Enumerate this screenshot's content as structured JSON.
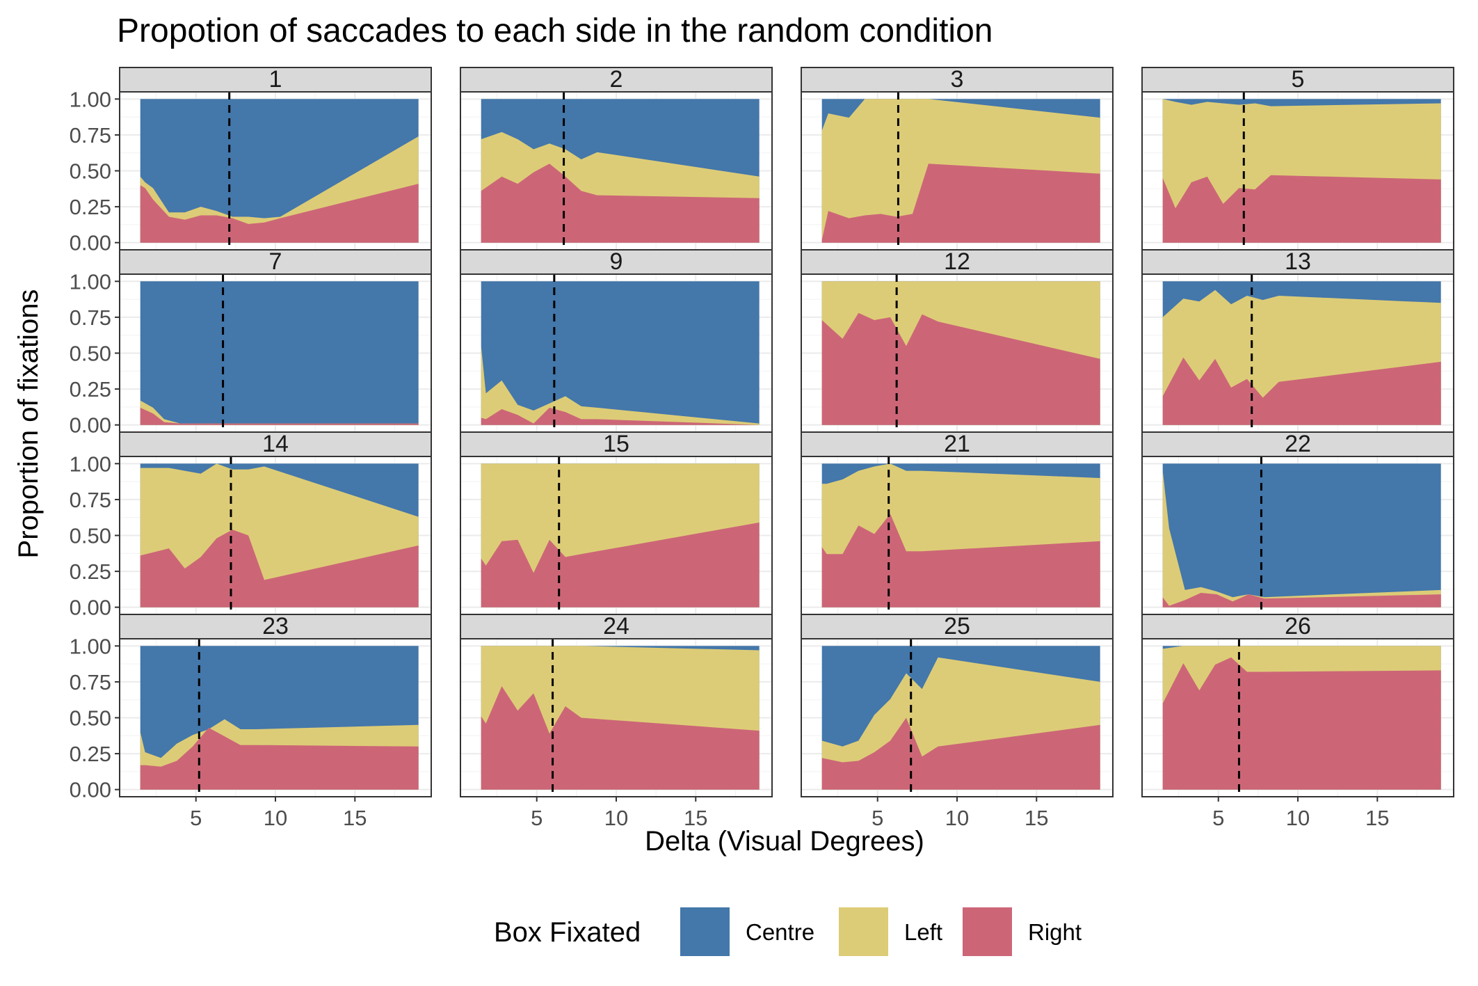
{
  "chart_data": {
    "type": "area",
    "stacked": true,
    "title": "Propotion of saccades to each side in the random condition",
    "xlabel": "Delta (Visual Degrees)",
    "ylabel": "Proportion of fixations",
    "xlim": [
      0.2,
      19.8
    ],
    "ylim": [
      -0.05,
      1.05
    ],
    "xticks": [
      5,
      10,
      15
    ],
    "xtick_labels": [
      "5",
      "10",
      "15"
    ],
    "yticks": [
      0,
      0.25,
      0.5,
      0.75,
      1
    ],
    "ytick_labels": [
      "0.00",
      "0.25",
      "0.50",
      "0.75",
      "1.00"
    ],
    "grid": true,
    "legend": {
      "title": "Box Fixated",
      "position": "bottom",
      "entries": [
        {
          "name": "Centre",
          "color": "#4477AA"
        },
        {
          "name": "Left",
          "color": "#DDCC77"
        },
        {
          "name": "Right",
          "color": "#CC6677"
        }
      ]
    },
    "panels": [
      {
        "label": "1",
        "threshold": 7.1,
        "x": [
          1.5,
          1.8,
          2.3,
          3.3,
          4.3,
          5.3,
          6.3,
          7.3,
          8.3,
          9.3,
          10.3,
          19
        ],
        "right": [
          0.4,
          0.38,
          0.3,
          0.18,
          0.16,
          0.19,
          0.19,
          0.17,
          0.13,
          0.14,
          0.17,
          0.41
        ],
        "left_top": [
          0.46,
          0.42,
          0.38,
          0.21,
          0.21,
          0.25,
          0.22,
          0.18,
          0.18,
          0.17,
          0.18,
          0.74
        ]
      },
      {
        "label": "2",
        "threshold": 6.7,
        "x": [
          1.5,
          2.8,
          3.8,
          4.8,
          5.8,
          6.8,
          7.8,
          8.8,
          19
        ],
        "right": [
          0.36,
          0.46,
          0.41,
          0.49,
          0.55,
          0.46,
          0.36,
          0.33,
          0.31
        ],
        "left_top": [
          0.72,
          0.77,
          0.72,
          0.65,
          0.69,
          0.65,
          0.58,
          0.63,
          0.46
        ]
      },
      {
        "label": "3",
        "threshold": 6.3,
        "x": [
          1.5,
          1.9,
          3.2,
          4.2,
          5.2,
          6.2,
          7.2,
          8.2,
          19
        ],
        "right": [
          0.02,
          0.22,
          0.17,
          0.19,
          0.2,
          0.18,
          0.2,
          0.55,
          0.48
        ],
        "left_top": [
          0.78,
          0.9,
          0.87,
          1.0,
          1.0,
          1.0,
          1.0,
          1.0,
          0.87
        ]
      },
      {
        "label": "5",
        "threshold": 6.6,
        "x": [
          1.5,
          2.3,
          3.3,
          4.3,
          5.3,
          6.3,
          7.3,
          8.3,
          19
        ],
        "right": [
          0.45,
          0.24,
          0.42,
          0.46,
          0.27,
          0.38,
          0.37,
          0.47,
          0.44
        ],
        "left_top": [
          1.0,
          0.98,
          0.96,
          0.98,
          0.97,
          0.96,
          0.97,
          0.95,
          0.97
        ]
      },
      {
        "label": "7",
        "threshold": 6.7,
        "x": [
          1.5,
          2.3,
          3.0,
          4.0,
          19
        ],
        "right": [
          0.12,
          0.08,
          0.02,
          0.01,
          0.01
        ],
        "left_top": [
          0.17,
          0.12,
          0.04,
          0.01,
          0.01
        ]
      },
      {
        "label": "9",
        "threshold": 6.1,
        "x": [
          1.5,
          1.8,
          2.8,
          3.8,
          4.8,
          5.8,
          6.8,
          7.8,
          8.8,
          19
        ],
        "right": [
          0.05,
          0.04,
          0.11,
          0.07,
          0.01,
          0.12,
          0.09,
          0.04,
          0.04,
          0.0
        ],
        "left_top": [
          0.55,
          0.22,
          0.31,
          0.14,
          0.1,
          0.15,
          0.2,
          0.13,
          0.12,
          0.01
        ]
      },
      {
        "label": "12",
        "threshold": 6.2,
        "x": [
          1.5,
          2.8,
          3.8,
          4.8,
          5.8,
          6.8,
          7.8,
          8.8,
          19
        ],
        "right": [
          0.73,
          0.6,
          0.78,
          0.73,
          0.75,
          0.55,
          0.77,
          0.72,
          0.46
        ],
        "left_top": [
          1.0,
          1.0,
          1.0,
          1.0,
          1.0,
          1.0,
          1.0,
          1.0,
          1.0
        ]
      },
      {
        "label": "13",
        "threshold": 7.1,
        "x": [
          1.5,
          2.8,
          3.8,
          4.8,
          5.8,
          6.8,
          7.8,
          8.8,
          19
        ],
        "right": [
          0.2,
          0.47,
          0.31,
          0.46,
          0.26,
          0.32,
          0.19,
          0.3,
          0.44
        ],
        "left_top": [
          0.75,
          0.88,
          0.86,
          0.94,
          0.84,
          0.9,
          0.87,
          0.9,
          0.85
        ]
      },
      {
        "label": "14",
        "threshold": 7.2,
        "x": [
          1.5,
          3.3,
          4.3,
          5.3,
          6.3,
          7.3,
          8.3,
          9.3,
          19
        ],
        "right": [
          0.36,
          0.41,
          0.27,
          0.35,
          0.48,
          0.54,
          0.5,
          0.19,
          0.43
        ],
        "left_top": [
          0.97,
          0.97,
          0.95,
          0.93,
          1.0,
          0.96,
          0.96,
          0.98,
          0.63
        ]
      },
      {
        "label": "15",
        "threshold": 6.4,
        "x": [
          1.5,
          1.8,
          2.8,
          3.8,
          4.8,
          5.8,
          6.8,
          7.8,
          19
        ],
        "right": [
          0.34,
          0.29,
          0.46,
          0.47,
          0.24,
          0.47,
          0.35,
          0.37,
          0.59
        ],
        "left_top": [
          1.0,
          1.0,
          1.0,
          1.0,
          1.0,
          1.0,
          1.0,
          1.0,
          1.0
        ]
      },
      {
        "label": "21",
        "threshold": 5.7,
        "x": [
          1.5,
          1.8,
          2.8,
          3.8,
          4.8,
          5.8,
          6.8,
          7.8,
          19
        ],
        "right": [
          0.42,
          0.37,
          0.37,
          0.57,
          0.51,
          0.65,
          0.39,
          0.39,
          0.46
        ],
        "left_top": [
          0.86,
          0.86,
          0.89,
          0.95,
          0.98,
          1.0,
          0.95,
          0.95,
          0.9
        ]
      },
      {
        "label": "22",
        "threshold": 7.7,
        "x": [
          1.5,
          1.9,
          2.9,
          3.9,
          4.9,
          5.9,
          6.9,
          7.9,
          19
        ],
        "right": [
          0.07,
          0.01,
          0.05,
          0.1,
          0.09,
          0.04,
          0.09,
          0.06,
          0.09
        ],
        "left_top": [
          0.95,
          0.55,
          0.12,
          0.14,
          0.11,
          0.07,
          0.09,
          0.07,
          0.12
        ]
      },
      {
        "label": "23",
        "threshold": 5.2,
        "x": [
          1.5,
          1.8,
          2.8,
          3.8,
          4.8,
          5.8,
          6.8,
          7.8,
          8.8,
          19
        ],
        "right": [
          0.17,
          0.17,
          0.16,
          0.2,
          0.3,
          0.43,
          0.37,
          0.31,
          0.31,
          0.3
        ],
        "left_top": [
          0.4,
          0.26,
          0.22,
          0.32,
          0.38,
          0.42,
          0.49,
          0.42,
          0.42,
          0.45
        ]
      },
      {
        "label": "24",
        "threshold": 6.0,
        "x": [
          1.5,
          1.8,
          2.8,
          3.8,
          4.8,
          5.8,
          6.8,
          7.8,
          19
        ],
        "right": [
          0.51,
          0.46,
          0.72,
          0.55,
          0.67,
          0.39,
          0.58,
          0.5,
          0.41
        ],
        "left_top": [
          1.0,
          1.0,
          1.0,
          1.0,
          1.0,
          1.0,
          1.0,
          1.0,
          0.97
        ]
      },
      {
        "label": "25",
        "threshold": 7.1,
        "x": [
          1.5,
          2.8,
          3.8,
          4.8,
          5.8,
          6.8,
          7.8,
          8.8,
          19
        ],
        "right": [
          0.22,
          0.19,
          0.2,
          0.26,
          0.34,
          0.5,
          0.23,
          0.3,
          0.45
        ],
        "left_top": [
          0.34,
          0.3,
          0.34,
          0.52,
          0.63,
          0.81,
          0.7,
          0.92,
          0.75
        ]
      },
      {
        "label": "26",
        "threshold": 6.3,
        "x": [
          1.5,
          2.8,
          3.8,
          4.8,
          5.8,
          6.8,
          7.8,
          19
        ],
        "right": [
          0.6,
          0.88,
          0.69,
          0.87,
          0.92,
          0.82,
          0.82,
          0.83
        ],
        "left_top": [
          0.98,
          1.0,
          1.0,
          1.0,
          1.0,
          1.0,
          1.0,
          1.0
        ]
      }
    ]
  }
}
